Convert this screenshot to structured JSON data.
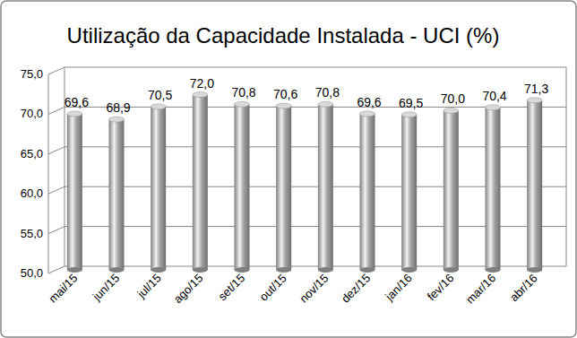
{
  "chart_data": {
    "type": "bar",
    "title": "Utilização da Capacidade Instalada - UCI (%)",
    "categories": [
      "mai/15",
      "jun/15",
      "jul/15",
      "ago/15",
      "set/15",
      "out/15",
      "nov/15",
      "dez/15",
      "jan/16",
      "fev/16",
      "mar/16",
      "abr/16"
    ],
    "values": [
      69.6,
      68.9,
      70.5,
      72.0,
      70.8,
      70.6,
      70.8,
      69.6,
      69.5,
      70.0,
      70.4,
      71.3
    ],
    "value_labels": [
      "69,6",
      "68,9",
      "70,5",
      "72,0",
      "70,8",
      "70,6",
      "70,8",
      "69,6",
      "69,5",
      "70,0",
      "70,4",
      "71,3"
    ],
    "color": "#a6a6a6",
    "ylim": [
      50,
      75
    ],
    "yticks": [
      {
        "value": 50,
        "label": "50,0"
      },
      {
        "value": 55,
        "label": "55,0"
      },
      {
        "value": 60,
        "label": "60,0"
      },
      {
        "value": 65,
        "label": "65,0"
      },
      {
        "value": 70,
        "label": "70,0"
      },
      {
        "value": 75,
        "label": "75,0"
      }
    ],
    "grid": true,
    "data_labels": true
  }
}
